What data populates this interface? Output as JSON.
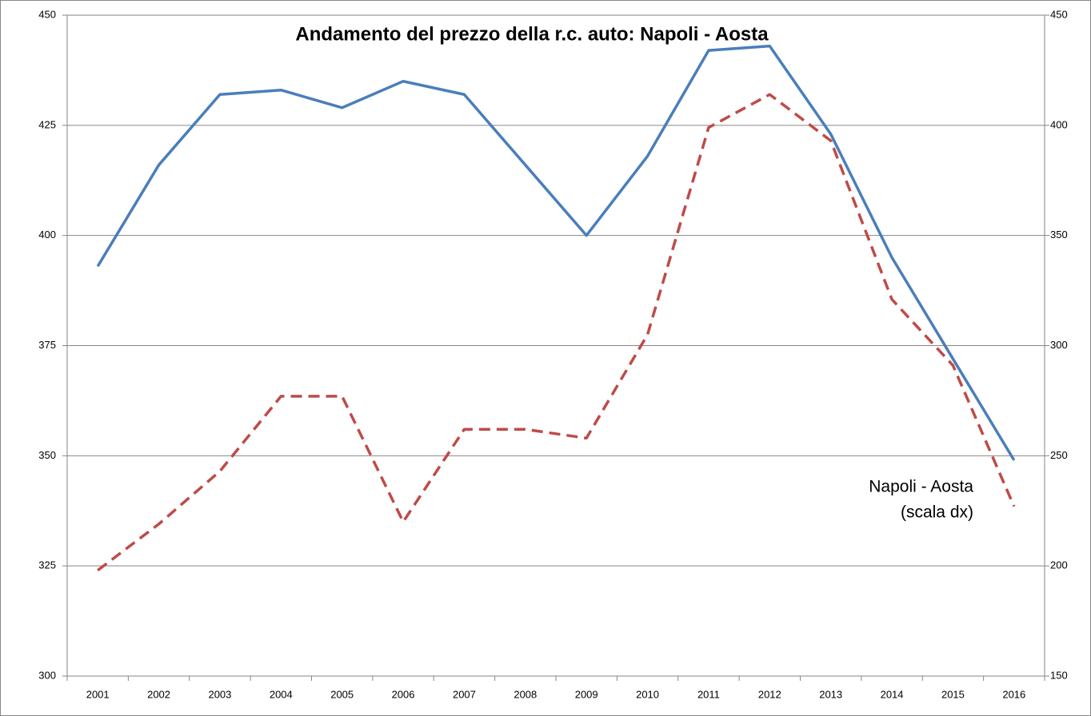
{
  "chart_data": {
    "type": "line",
    "title": "Andamento del prezzo della r.c. auto: Napoli - Aosta",
    "categories": [
      "2001",
      "2002",
      "2003",
      "2004",
      "2005",
      "2006",
      "2007",
      "2008",
      "2009",
      "2010",
      "2011",
      "2012",
      "2013",
      "2014",
      "2015",
      "2016"
    ],
    "series": [
      {
        "color": "#4a7ebb",
        "values": [
          393,
          416,
          432,
          433,
          429,
          435,
          432,
          416,
          400,
          418,
          442,
          443,
          423,
          395,
          372,
          349
        ]
      },
      {
        "color": "#be4b48",
        "axis": "y2",
        "dashed": true,
        "values": [
          198,
          219,
          243,
          277,
          277,
          220,
          262,
          262,
          258,
          305,
          399,
          414,
          393,
          321,
          291,
          227
        ]
      }
    ],
    "annotation": [
      "Napoli - Aosta",
      "(scala dx)"
    ],
    "ylim": [
      300,
      450
    ],
    "yticks": [
      300,
      325,
      350,
      375,
      400,
      425,
      450
    ],
    "y2lim": [
      150,
      450
    ],
    "y2ticks": [
      150,
      200,
      250,
      300,
      350,
      400,
      450
    ],
    "grid": true
  }
}
